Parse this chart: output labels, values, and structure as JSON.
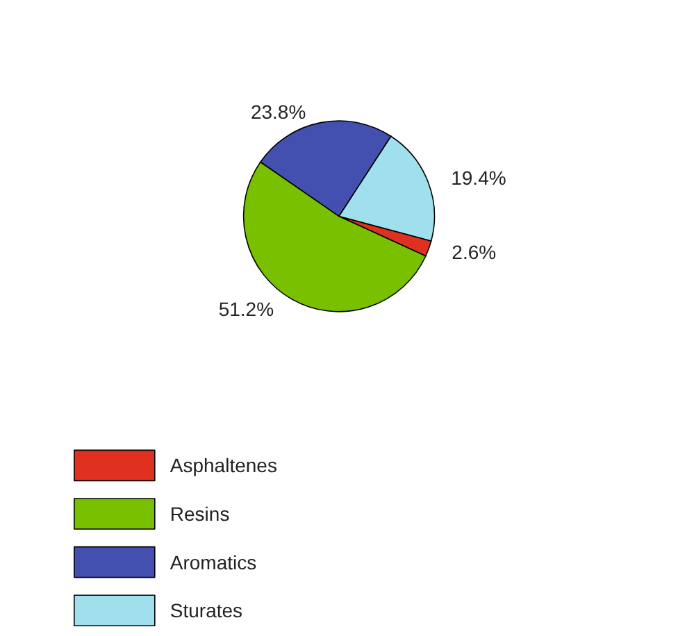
{
  "chart_data": {
    "type": "pie",
    "categories": [
      "Asphaltenes",
      "Resins",
      "Aromatics",
      "Sturates"
    ],
    "values": [
      2.6,
      51.2,
      23.8,
      19.4
    ],
    "value_labels": [
      "2.6%",
      "51.2%",
      "23.8%",
      "19.4%"
    ],
    "colors": [
      "#e03020",
      "#78c000",
      "#4450b0",
      "#a0e0ec"
    ],
    "legend": "bottom left"
  }
}
